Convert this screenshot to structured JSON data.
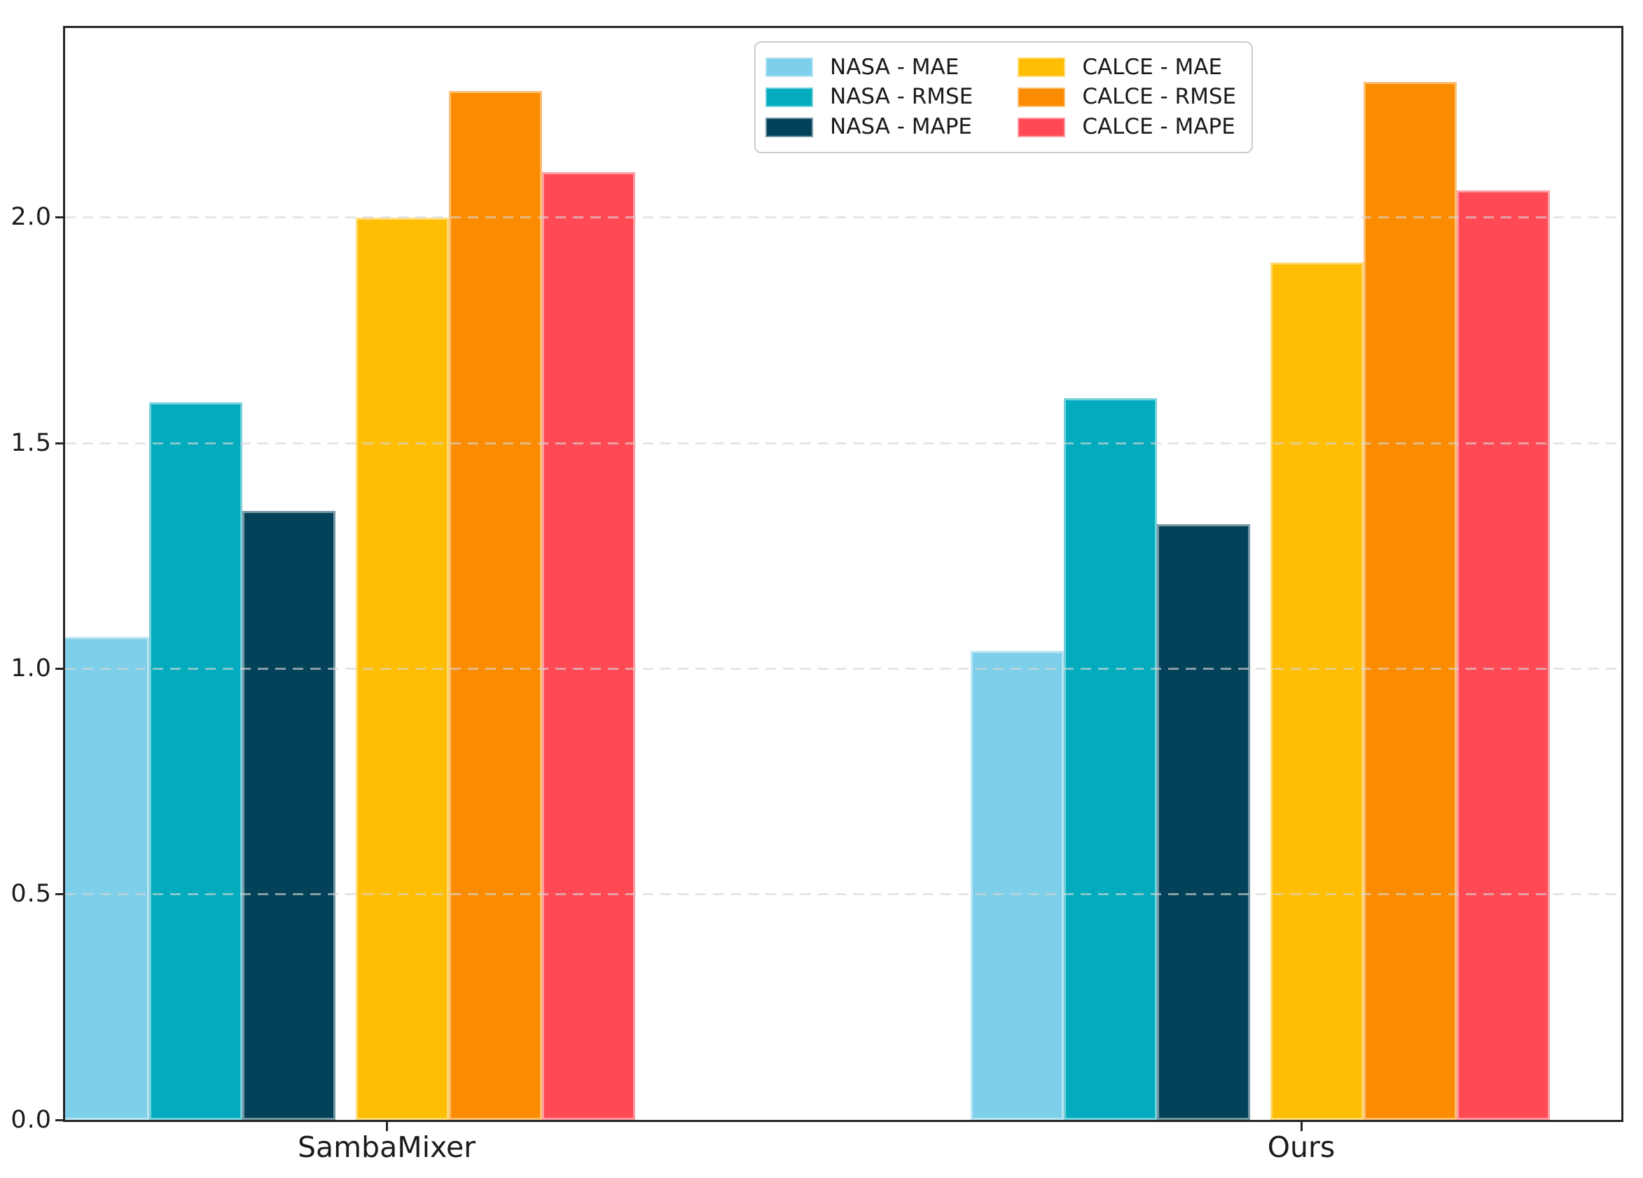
{
  "chart_data": {
    "type": "bar",
    "title": "",
    "xlabel": "",
    "ylabel": "",
    "categories": [
      "SambaMixer",
      "Ours"
    ],
    "series": [
      {
        "name": "NASA - MAE",
        "color": "#7ECFE9",
        "edge_color": "#B8E5F3",
        "values": [
          1.07,
          1.04
        ]
      },
      {
        "name": "NASA - RMSE",
        "color": "#02ABBE",
        "edge_color": "#74D1DB",
        "values": [
          1.59,
          1.6
        ]
      },
      {
        "name": "NASA - MAPE",
        "color": "#034258",
        "edge_color": "#7497A3",
        "values": [
          1.35,
          1.32
        ]
      },
      {
        "name": "CALCE - MAE",
        "color": "#FFBE03",
        "edge_color": "#FFDB74",
        "values": [
          2.0,
          1.9
        ]
      },
      {
        "name": "CALCE - RMSE",
        "color": "#FB8B00",
        "edge_color": "#FDBF73",
        "values": [
          2.28,
          2.3
        ]
      },
      {
        "name": "CALCE - MAPE",
        "color": "#FF4A55",
        "edge_color": "#FF9BA2",
        "values": [
          2.1,
          2.06
        ]
      }
    ],
    "yticks": [
      "0.0",
      "0.5",
      "1.0",
      "1.5",
      "2.0"
    ],
    "ytick_values": [
      0.0,
      0.5,
      1.0,
      1.5,
      2.0
    ],
    "ylim": [
      0,
      2.42
    ],
    "grid": "horizontal dashed light-gray at y ticks, drawn over bars",
    "legend_position": "upper center, 2 columns, 3 rows",
    "spine_color": "#262626",
    "background_color": "#ffffff"
  }
}
